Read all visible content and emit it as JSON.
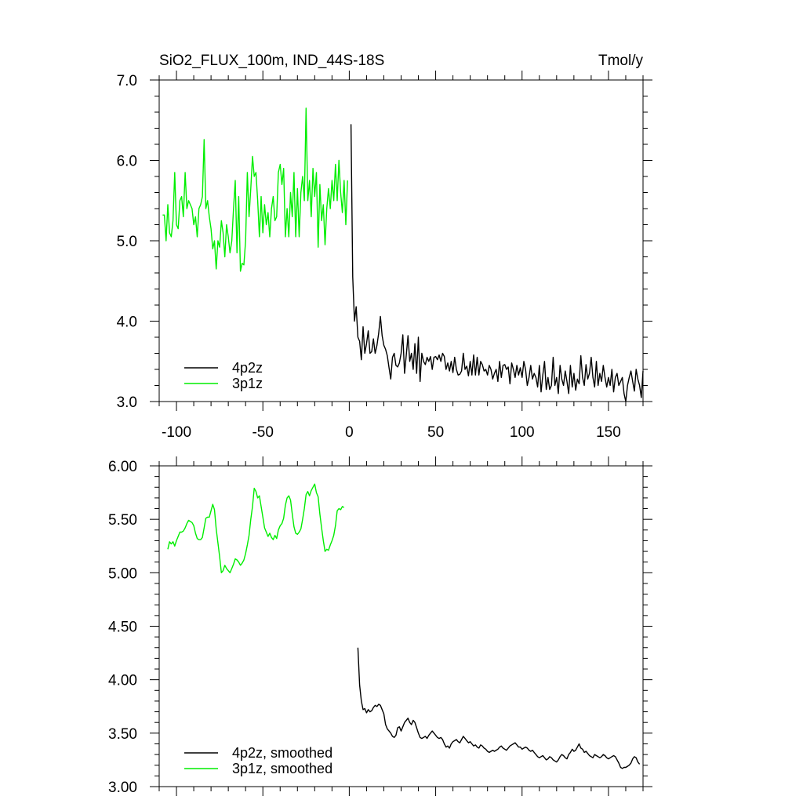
{
  "header": {
    "title": "SiO2_FLUX_100m, IND_44S-18S",
    "units": "Tmol/y"
  },
  "colors": {
    "series_4p2z": "#000000",
    "series_3p1z": "#00ee00",
    "axis": "#000000"
  },
  "chart_data": [
    {
      "type": "line",
      "title": "SiO2_FLUX_100m, IND_44S-18S",
      "units": "Tmol/y",
      "xlim": [
        -110,
        170
      ],
      "ylim": [
        3.0,
        7.0
      ],
      "x_ticks": [
        -100,
        -50,
        0,
        50,
        100,
        150
      ],
      "x_tick_labels": [
        "-100",
        "-50",
        "0",
        "50",
        "100",
        "150"
      ],
      "y_ticks": [
        3.0,
        4.0,
        5.0,
        6.0,
        7.0
      ],
      "y_tick_labels": [
        "3.0",
        "4.0",
        "5.0",
        "6.0",
        "7.0"
      ],
      "grid": false,
      "legend_placement": "bottom-left",
      "series": [
        {
          "name": "4p2z",
          "color": "#000000",
          "x_start": 1,
          "x_step": 1,
          "values": [
            6.45,
            4.55,
            4.0,
            4.18,
            3.8,
            3.75,
            3.52,
            3.93,
            3.6,
            3.72,
            3.88,
            3.6,
            3.62,
            3.78,
            3.6,
            3.7,
            3.85,
            4.06,
            3.82,
            3.7,
            3.65,
            3.57,
            3.42,
            3.28,
            3.55,
            3.6,
            3.45,
            3.43,
            3.48,
            3.6,
            3.83,
            3.35,
            3.58,
            3.82,
            3.5,
            3.6,
            3.4,
            3.72,
            3.35,
            3.8,
            3.25,
            3.6,
            3.5,
            3.46,
            3.55,
            3.5,
            3.56,
            3.4,
            3.55,
            3.56,
            3.52,
            3.58,
            3.5,
            3.6,
            3.56,
            3.4,
            3.48,
            3.38,
            3.5,
            3.36,
            3.55,
            3.4,
            3.33,
            3.34,
            3.38,
            3.6,
            3.4,
            3.44,
            3.32,
            3.5,
            3.33,
            3.58,
            3.33,
            3.55,
            3.33,
            3.5,
            3.46,
            3.38,
            3.4,
            3.33,
            3.45,
            3.4,
            3.28,
            3.35,
            3.4,
            3.25,
            3.5,
            3.3,
            3.45,
            3.46,
            3.4,
            3.43,
            3.22,
            3.48,
            3.4,
            3.3,
            3.45,
            3.33,
            3.42,
            3.3,
            3.5,
            3.4,
            3.2,
            3.3,
            3.45,
            3.28,
            3.35,
            3.3,
            3.18,
            3.45,
            3.12,
            3.33,
            3.5,
            3.15,
            3.3,
            3.15,
            3.2,
            3.55,
            3.2,
            3.3,
            3.1,
            3.45,
            3.28,
            3.2,
            3.38,
            3.25,
            3.1,
            3.45,
            3.18,
            3.35,
            3.14,
            3.28,
            3.22,
            3.57,
            3.3,
            3.2,
            3.46,
            3.28,
            3.35,
            3.55,
            3.3,
            3.18,
            3.5,
            3.2,
            3.35,
            3.25,
            3.45,
            3.3,
            3.18,
            3.3,
            3.2,
            3.4,
            3.12,
            3.3,
            3.35,
            3.2,
            3.25,
            3.3,
            3.1,
            3.0,
            3.2,
            3.3,
            3.38,
            3.25,
            3.13,
            3.4,
            3.28,
            3.2,
            3.05,
            3.38
          ]
        },
        {
          "name": "3p1z",
          "color": "#00ee00",
          "x_start": -108,
          "x_step": 1,
          "values": [
            5.32,
            5.32,
            5.0,
            5.45,
            5.1,
            5.05,
            5.25,
            5.85,
            5.2,
            5.15,
            5.5,
            5.55,
            5.3,
            5.85,
            5.4,
            5.5,
            5.45,
            5.4,
            5.2,
            5.3,
            5.05,
            5.4,
            5.45,
            5.55,
            6.26,
            5.4,
            5.5,
            5.3,
            5.15,
            4.9,
            5.0,
            4.65,
            5.0,
            4.92,
            5.25,
            5.1,
            4.8,
            5.2,
            5.05,
            4.85,
            5.0,
            5.4,
            5.75,
            4.85,
            5.55,
            4.62,
            4.72,
            4.7,
            5.0,
            5.85,
            5.3,
            5.65,
            6.05,
            5.8,
            5.85,
            5.5,
            5.05,
            5.55,
            5.1,
            5.45,
            5.2,
            5.35,
            5.05,
            5.4,
            5.55,
            5.25,
            5.3,
            5.85,
            5.95,
            5.7,
            5.9,
            5.05,
            5.4,
            5.05,
            5.6,
            5.3,
            5.85,
            5.05,
            5.65,
            5.05,
            5.6,
            5.8,
            5.5,
            6.65,
            5.5,
            5.75,
            5.3,
            5.9,
            5.55,
            5.85,
            4.92,
            5.7,
            5.25,
            5.45,
            4.95,
            5.4,
            5.65,
            5.4,
            5.75,
            5.5,
            5.95,
            5.5,
            6.0,
            5.6,
            5.35,
            5.75,
            5.2,
            5.75
          ]
        }
      ]
    },
    {
      "type": "line",
      "xlim": [
        -110,
        170
      ],
      "ylim": [
        3.0,
        6.0
      ],
      "y_ticks": [
        3.0,
        3.5,
        4.0,
        4.5,
        5.0,
        5.5,
        6.0
      ],
      "y_tick_labels": [
        "3.00",
        "3.50",
        "4.00",
        "4.50",
        "5.00",
        "5.50",
        "6.00"
      ],
      "grid": false,
      "legend_placement": "bottom-left",
      "series": [
        {
          "name": "4p2z, smoothed",
          "color": "#000000",
          "x_start": 5,
          "x_step": 1,
          "values": [
            4.3,
            3.95,
            3.8,
            3.72,
            3.73,
            3.69,
            3.72,
            3.7,
            3.71,
            3.74,
            3.76,
            3.75,
            3.77,
            3.76,
            3.72,
            3.68,
            3.58,
            3.54,
            3.52,
            3.5,
            3.47,
            3.46,
            3.48,
            3.55,
            3.56,
            3.52,
            3.56,
            3.6,
            3.62,
            3.64,
            3.6,
            3.58,
            3.62,
            3.6,
            3.55,
            3.5,
            3.46,
            3.45,
            3.46,
            3.47,
            3.45,
            3.48,
            3.5,
            3.52,
            3.5,
            3.48,
            3.46,
            3.45,
            3.46,
            3.44,
            3.4,
            3.37,
            3.38,
            3.36,
            3.4,
            3.42,
            3.43,
            3.44,
            3.42,
            3.41,
            3.44,
            3.47,
            3.45,
            3.43,
            3.41,
            3.42,
            3.4,
            3.38,
            3.39,
            3.37,
            3.36,
            3.39,
            3.38,
            3.36,
            3.35,
            3.33,
            3.32,
            3.33,
            3.34,
            3.33,
            3.34,
            3.35,
            3.37,
            3.38,
            3.36,
            3.35,
            3.34,
            3.36,
            3.38,
            3.39,
            3.4,
            3.41,
            3.39,
            3.37,
            3.37,
            3.35,
            3.36,
            3.37,
            3.36,
            3.34,
            3.33,
            3.34,
            3.32,
            3.3,
            3.28,
            3.27,
            3.28,
            3.29,
            3.27,
            3.25,
            3.26,
            3.28,
            3.27,
            3.25,
            3.24,
            3.23,
            3.25,
            3.28,
            3.3,
            3.29,
            3.27,
            3.26,
            3.3,
            3.32,
            3.35,
            3.33,
            3.34,
            3.37,
            3.4,
            3.36,
            3.35,
            3.32,
            3.33,
            3.31,
            3.29,
            3.28,
            3.27,
            3.3,
            3.29,
            3.28,
            3.27,
            3.28,
            3.3,
            3.29,
            3.27,
            3.26,
            3.27,
            3.28,
            3.29,
            3.28,
            3.25,
            3.22,
            3.18,
            3.17,
            3.18,
            3.18,
            3.19,
            3.2,
            3.22,
            3.26,
            3.28,
            3.27,
            3.23,
            3.21
          ]
        },
        {
          "name": "3p1z, smoothed",
          "color": "#00ee00",
          "x_start": -105,
          "x_step": 1,
          "values": [
            5.22,
            5.29,
            5.27,
            5.29,
            5.25,
            5.3,
            5.34,
            5.38,
            5.38,
            5.39,
            5.42,
            5.46,
            5.49,
            5.48,
            5.47,
            5.44,
            5.37,
            5.32,
            5.31,
            5.31,
            5.33,
            5.42,
            5.51,
            5.52,
            5.52,
            5.58,
            5.64,
            5.59,
            5.41,
            5.28,
            5.15,
            5.0,
            5.02,
            5.07,
            5.04,
            5.02,
            5.0,
            5.04,
            5.08,
            5.13,
            5.12,
            5.1,
            5.07,
            5.09,
            5.12,
            5.18,
            5.26,
            5.35,
            5.5,
            5.62,
            5.79,
            5.76,
            5.7,
            5.72,
            5.62,
            5.52,
            5.42,
            5.38,
            5.34,
            5.37,
            5.33,
            5.31,
            5.35,
            5.32,
            5.4,
            5.44,
            5.46,
            5.51,
            5.63,
            5.7,
            5.72,
            5.68,
            5.55,
            5.43,
            5.37,
            5.36,
            5.38,
            5.41,
            5.5,
            5.6,
            5.73,
            5.76,
            5.72,
            5.77,
            5.8,
            5.83,
            5.75,
            5.71,
            5.55,
            5.42,
            5.3,
            5.2,
            5.22,
            5.21,
            5.26,
            5.3,
            5.35,
            5.44,
            5.58,
            5.6,
            5.59,
            5.62,
            5.61
          ]
        }
      ]
    }
  ]
}
